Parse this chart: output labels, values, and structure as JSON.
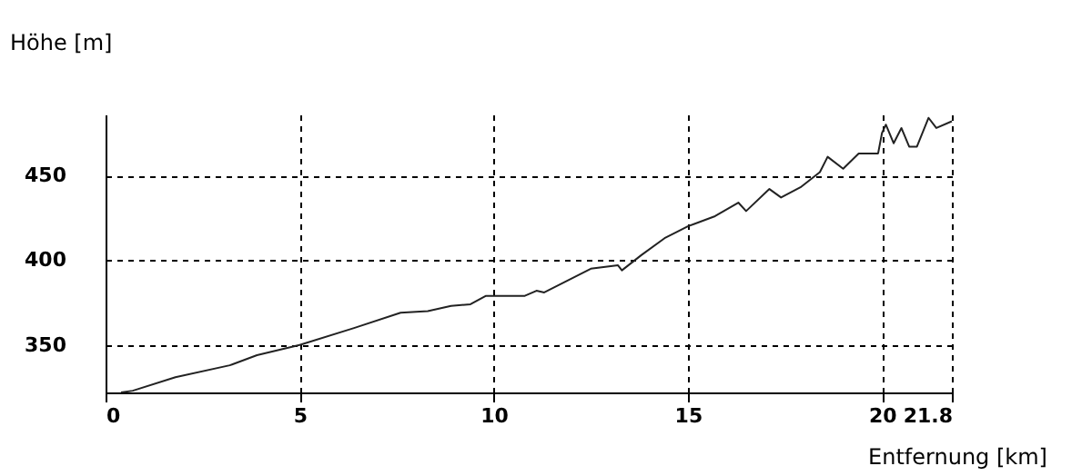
{
  "chart_data": {
    "type": "line",
    "xlabel": "Entfernung [km]",
    "ylabel": "Höhe [m]",
    "x": [
      0.4,
      0.7,
      1.8,
      3.2,
      3.9,
      5,
      6.4,
      7.6,
      8.3,
      8.9,
      9.4,
      9.8,
      10.8,
      11.1,
      11.3,
      11.9,
      12.5,
      13.2,
      13.3,
      13.8,
      14.4,
      15,
      15.7,
      16.3,
      16.5,
      17.1,
      17.4,
      17.9,
      18.4,
      18.6,
      19,
      19.4,
      19.9,
      20,
      20.1,
      20.3,
      20.5,
      20.7,
      20.9,
      21.2,
      21.4,
      21.8
    ],
    "series": [
      {
        "color": "#222222",
        "values": [
          322,
          323,
          331,
          338,
          344,
          350,
          360,
          369,
          370,
          373,
          374,
          379,
          379,
          382,
          381,
          388,
          395,
          397,
          394,
          403,
          413,
          420,
          426,
          434,
          429,
          442,
          437,
          443,
          452,
          461,
          454,
          463,
          463,
          475,
          480,
          469,
          478,
          467,
          467,
          484,
          478,
          482
        ]
      }
    ],
    "xlim": [
      0,
      21.8
    ],
    "xticks": [
      0,
      5,
      10,
      15,
      20,
      21.8
    ],
    "ylim": [
      322,
      486
    ],
    "yticks": [
      350,
      400,
      450
    ],
    "grid": true,
    "line_style": "solid",
    "marker": "none"
  }
}
